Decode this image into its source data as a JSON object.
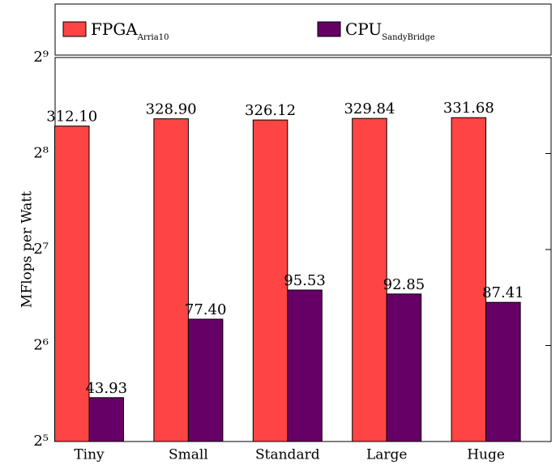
{
  "chart_data": {
    "type": "bar",
    "categories": [
      "Tiny",
      "Small",
      "Standard",
      "Large",
      "Huge"
    ],
    "series": [
      {
        "name": "FPGA",
        "name_subscript": "Arria10",
        "color": "#ff4444",
        "values": [
          312.1,
          328.9,
          326.12,
          329.84,
          331.68
        ],
        "value_labels": [
          "312.10",
          "328.90",
          "326.12",
          "329.84",
          "331.68"
        ]
      },
      {
        "name": "CPU",
        "name_subscript": "SandyBridge",
        "color": "#660066",
        "values": [
          43.93,
          77.4,
          95.53,
          92.85,
          87.41
        ],
        "value_labels": [
          "43.93",
          "77.40",
          "95.53",
          "92.85",
          "87.41"
        ]
      }
    ],
    "y_label": "MFlops per Watt",
    "log_base": 2,
    "ylim": [
      32,
      512
    ],
    "yticks": [
      {
        "value": 32,
        "label": "2⁵"
      },
      {
        "value": 64,
        "label": "2⁶"
      },
      {
        "value": 128,
        "label": "2⁷"
      },
      {
        "value": 256,
        "label": "2⁸"
      },
      {
        "value": 512,
        "label": "2⁹"
      }
    ],
    "legend": "top"
  }
}
